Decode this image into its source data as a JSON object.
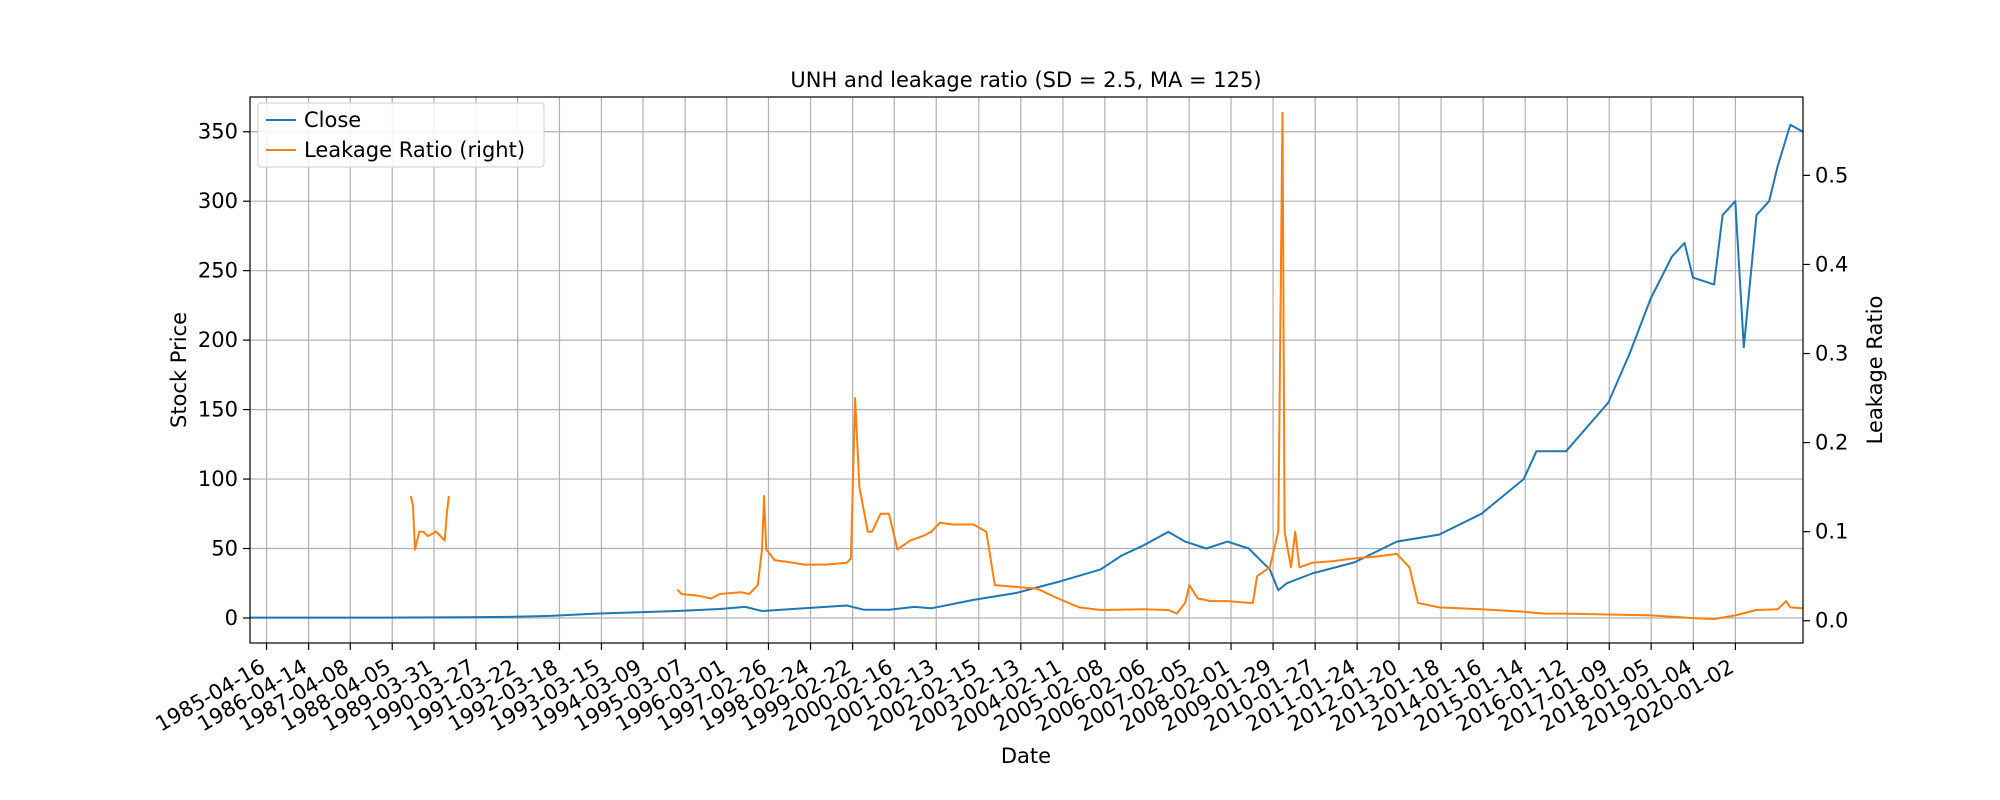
{
  "chart_data": {
    "type": "line",
    "title": "UNH and leakage ratio (SD = 2.5, MA = 125)",
    "xlabel": "Date",
    "ylabel_left": "Stock Price",
    "ylabel_right": "Leakage Ratio",
    "grid": true,
    "legend_position": "top-left",
    "x_tick_labels": [
      "1985-04-16",
      "1986-04-14",
      "1987-04-08",
      "1988-04-05",
      "1989-03-31",
      "1990-03-27",
      "1991-03-22",
      "1992-03-18",
      "1993-03-15",
      "1994-03-09",
      "1995-03-07",
      "1996-03-01",
      "1997-02-26",
      "1998-02-24",
      "1999-02-22",
      "2000-02-16",
      "2001-02-13",
      "2002-02-15",
      "2003-02-13",
      "2004-02-11",
      "2005-02-08",
      "2006-02-06",
      "2007-02-05",
      "2008-02-01",
      "2009-01-29",
      "2010-01-27",
      "2011-01-24",
      "2012-01-20",
      "2013-01-18",
      "2014-01-16",
      "2015-01-14",
      "2016-01-12",
      "2017-01-09",
      "2018-01-05",
      "2019-01-04",
      "2020-01-02"
    ],
    "xlim": [
      1984.9,
      2021.6
    ],
    "y_left_lim": [
      -18,
      375
    ],
    "y_left_ticks": [
      0,
      50,
      100,
      150,
      200,
      250,
      300,
      350
    ],
    "y_right_lim": [
      -0.025,
      0.588
    ],
    "y_right_ticks": [
      0.0,
      0.1,
      0.2,
      0.3,
      0.4,
      0.5
    ],
    "series": [
      {
        "name": "Close",
        "axis": "left",
        "color": "#1f77b4",
        "points": [
          [
            1984.9,
            0.3
          ],
          [
            1988.0,
            0.3
          ],
          [
            1990.0,
            0.5
          ],
          [
            1991.0,
            0.8
          ],
          [
            1992.0,
            1.5
          ],
          [
            1993.0,
            3
          ],
          [
            1994.0,
            4
          ],
          [
            1995.0,
            5
          ],
          [
            1996.0,
            6.5
          ],
          [
            1996.6,
            8
          ],
          [
            1997.0,
            5
          ],
          [
            1998.0,
            7
          ],
          [
            1999.0,
            9
          ],
          [
            1999.4,
            6
          ],
          [
            2000.0,
            6
          ],
          [
            2000.6,
            8
          ],
          [
            2001.0,
            7
          ],
          [
            2002.0,
            13
          ],
          [
            2003.0,
            18
          ],
          [
            2004.0,
            26
          ],
          [
            2005.0,
            35
          ],
          [
            2005.5,
            45
          ],
          [
            2006.0,
            52
          ],
          [
            2006.6,
            62
          ],
          [
            2007.0,
            55
          ],
          [
            2007.5,
            50
          ],
          [
            2008.0,
            55
          ],
          [
            2008.5,
            50
          ],
          [
            2009.0,
            35
          ],
          [
            2009.2,
            20
          ],
          [
            2009.4,
            25
          ],
          [
            2010.0,
            32
          ],
          [
            2011.0,
            40
          ],
          [
            2012.0,
            55
          ],
          [
            2013.0,
            60
          ],
          [
            2014.0,
            75
          ],
          [
            2015.0,
            100
          ],
          [
            2015.3,
            120
          ],
          [
            2016.0,
            120
          ],
          [
            2017.0,
            155
          ],
          [
            2017.5,
            190
          ],
          [
            2018.0,
            230
          ],
          [
            2018.5,
            260
          ],
          [
            2018.8,
            270
          ],
          [
            2019.0,
            245
          ],
          [
            2019.5,
            240
          ],
          [
            2019.7,
            290
          ],
          [
            2020.0,
            300
          ],
          [
            2020.2,
            195
          ],
          [
            2020.5,
            290
          ],
          [
            2020.8,
            300
          ],
          [
            2021.0,
            325
          ],
          [
            2021.3,
            355
          ],
          [
            2021.6,
            350
          ]
        ]
      },
      {
        "name": "Leakage Ratio (right)",
        "axis": "right",
        "color": "#ff7f0e",
        "points": [
          [
            1988.7,
            0.14
          ],
          [
            1988.75,
            0.13
          ],
          [
            1988.8,
            0.08
          ],
          [
            1988.85,
            0.09
          ],
          [
            1988.9,
            0.1
          ],
          [
            1989.0,
            0.1
          ],
          [
            1989.1,
            0.095
          ],
          [
            1989.3,
            0.1
          ],
          [
            1989.5,
            0.09
          ],
          [
            1989.55,
            0.12
          ],
          [
            1989.6,
            0.14
          ],
          [
            null,
            null
          ],
          [
            1995.0,
            0.035
          ],
          [
            1995.1,
            0.03
          ],
          [
            1995.5,
            0.028
          ],
          [
            1995.8,
            0.025
          ],
          [
            1996.0,
            0.03
          ],
          [
            1996.5,
            0.032
          ],
          [
            1996.7,
            0.03
          ],
          [
            1996.9,
            0.04
          ],
          [
            1997.0,
            0.08
          ],
          [
            1997.05,
            0.14
          ],
          [
            1997.1,
            0.08
          ],
          [
            1997.3,
            0.068
          ],
          [
            1997.6,
            0.066
          ],
          [
            1998.0,
            0.063
          ],
          [
            1998.5,
            0.063
          ],
          [
            1999.0,
            0.065
          ],
          [
            1999.1,
            0.07
          ],
          [
            1999.2,
            0.25
          ],
          [
            1999.3,
            0.15
          ],
          [
            1999.5,
            0.1
          ],
          [
            1999.6,
            0.1
          ],
          [
            1999.8,
            0.12
          ],
          [
            2000.0,
            0.12
          ],
          [
            2000.2,
            0.08
          ],
          [
            2000.5,
            0.09
          ],
          [
            2000.8,
            0.095
          ],
          [
            2001.0,
            0.1
          ],
          [
            2001.2,
            0.11
          ],
          [
            2001.5,
            0.108
          ],
          [
            2002.0,
            0.108
          ],
          [
            2002.3,
            0.1
          ],
          [
            2002.5,
            0.04
          ],
          [
            2003.0,
            0.038
          ],
          [
            2003.5,
            0.036
          ],
          [
            2004.0,
            0.025
          ],
          [
            2004.5,
            0.015
          ],
          [
            2005.0,
            0.012
          ],
          [
            2006.0,
            0.013
          ],
          [
            2006.6,
            0.012
          ],
          [
            2006.8,
            0.008
          ],
          [
            2007.0,
            0.02
          ],
          [
            2007.1,
            0.04
          ],
          [
            2007.3,
            0.025
          ],
          [
            2007.6,
            0.022
          ],
          [
            2008.0,
            0.022
          ],
          [
            2008.5,
            0.02
          ],
          [
            2008.6,
            0.02
          ],
          [
            2008.7,
            0.05
          ],
          [
            2009.0,
            0.06
          ],
          [
            2009.2,
            0.1
          ],
          [
            2009.3,
            0.57
          ],
          [
            2009.35,
            0.1
          ],
          [
            2009.5,
            0.06
          ],
          [
            2009.6,
            0.1
          ],
          [
            2009.7,
            0.06
          ],
          [
            2010.0,
            0.065
          ],
          [
            2010.5,
            0.067
          ],
          [
            2011.0,
            0.07
          ],
          [
            2011.5,
            0.072
          ],
          [
            2012.0,
            0.075
          ],
          [
            2012.3,
            0.06
          ],
          [
            2012.5,
            0.02
          ],
          [
            2012.8,
            0.017
          ],
          [
            2013.0,
            0.015
          ],
          [
            2014.0,
            0.013
          ],
          [
            2015.0,
            0.01
          ],
          [
            2015.5,
            0.008
          ],
          [
            2016.0,
            0.008
          ],
          [
            2017.0,
            0.007
          ],
          [
            2018.0,
            0.006
          ],
          [
            2019.0,
            0.003
          ],
          [
            2019.5,
            0.002
          ],
          [
            2020.0,
            0.006
          ],
          [
            2020.5,
            0.012
          ],
          [
            2021.0,
            0.013
          ],
          [
            2021.2,
            0.022
          ],
          [
            2021.3,
            0.015
          ],
          [
            2021.6,
            0.014
          ]
        ]
      }
    ]
  }
}
